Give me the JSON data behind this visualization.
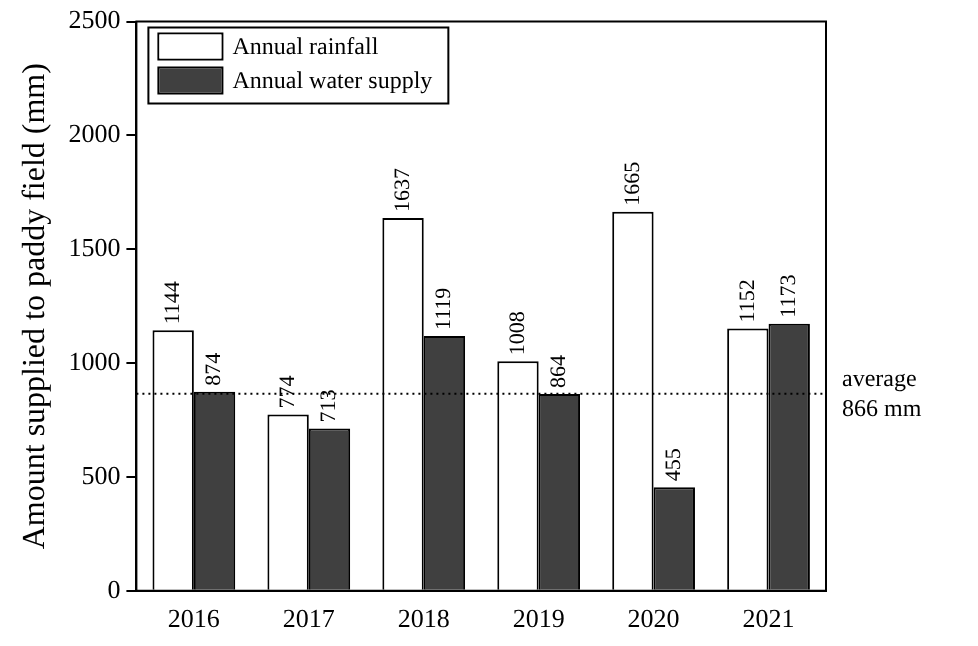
{
  "chart_data": {
    "type": "bar",
    "ylabel": "Amount supplied to paddy field (mm)",
    "categories": [
      "2016",
      "2017",
      "2018",
      "2019",
      "2020",
      "2021"
    ],
    "series": [
      {
        "name": "Annual rainfall",
        "color": "#ffffff",
        "values": [
          1144,
          774,
          1637,
          1008,
          1665,
          1152
        ]
      },
      {
        "name": "Annual water supply",
        "color": "#404040",
        "values": [
          874,
          713,
          1119,
          864,
          455,
          1173
        ]
      }
    ],
    "ylim": [
      0,
      2500
    ],
    "yticks": [
      0,
      500,
      1000,
      1500,
      2000,
      2500
    ],
    "grid": false,
    "legend": "top left",
    "data_labels": true,
    "ref_lines": [
      {
        "axis": "y",
        "value": 866,
        "label": "average\n866 mm",
        "line_style": "dotted",
        "color": "#000000"
      }
    ]
  }
}
